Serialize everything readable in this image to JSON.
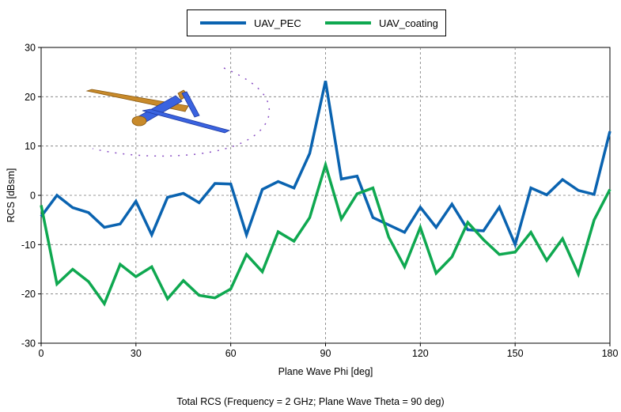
{
  "chart_data": {
    "type": "line",
    "title": "Total RCS (Frequency = 2 GHz; Plane Wave Theta = 90 deg)",
    "xlabel": "Plane Wave Phi [deg]",
    "ylabel": "RCS [dBsm]",
    "xlim": [
      0,
      180
    ],
    "ylim": [
      -30,
      30
    ],
    "xticks": [
      0,
      30,
      60,
      90,
      120,
      150,
      180
    ],
    "yticks": [
      -30,
      -20,
      -10,
      0,
      10,
      20,
      30
    ],
    "grid": true,
    "legend_position": "top-center",
    "x": [
      0,
      5,
      10,
      15,
      20,
      25,
      30,
      35,
      40,
      45,
      50,
      55,
      60,
      65,
      70,
      75,
      80,
      85,
      90,
      95,
      100,
      105,
      110,
      115,
      120,
      125,
      130,
      135,
      140,
      145,
      150,
      155,
      160,
      165,
      170,
      175,
      180
    ],
    "series": [
      {
        "name": "UAV_PEC",
        "color": "#0a63b0",
        "values": [
          -4.3,
          0,
          -2.5,
          -3.5,
          -6.5,
          -5.8,
          -1.2,
          -8.0,
          -0.4,
          0.4,
          -1.5,
          2.4,
          2.3,
          -8.0,
          1.2,
          2.8,
          1.5,
          8.5,
          23.2,
          3.3,
          3.9,
          -4.5,
          -6.0,
          -7.5,
          -2.4,
          -6.5,
          -1.8,
          -7.0,
          -7.2,
          -2.4,
          -10.0,
          1.5,
          0.1,
          3.2,
          1.0,
          0.2,
          13.0
        ]
      },
      {
        "name": "UAV_coating",
        "color": "#0fa850",
        "values": [
          -2.0,
          -18.0,
          -15.0,
          -17.5,
          -22.0,
          -14.0,
          -16.5,
          -14.5,
          -21.0,
          -17.3,
          -20.3,
          -20.8,
          -19.0,
          -12.0,
          -15.5,
          -7.4,
          -9.3,
          -4.5,
          6.2,
          -4.8,
          0.3,
          1.5,
          -8.5,
          -14.5,
          -6.5,
          -15.8,
          -12.5,
          -5.5,
          -9.0,
          -12.0,
          -11.5,
          -7.5,
          -13.2,
          -8.8,
          -16.0,
          -5.0,
          1.2
        ]
      }
    ]
  }
}
